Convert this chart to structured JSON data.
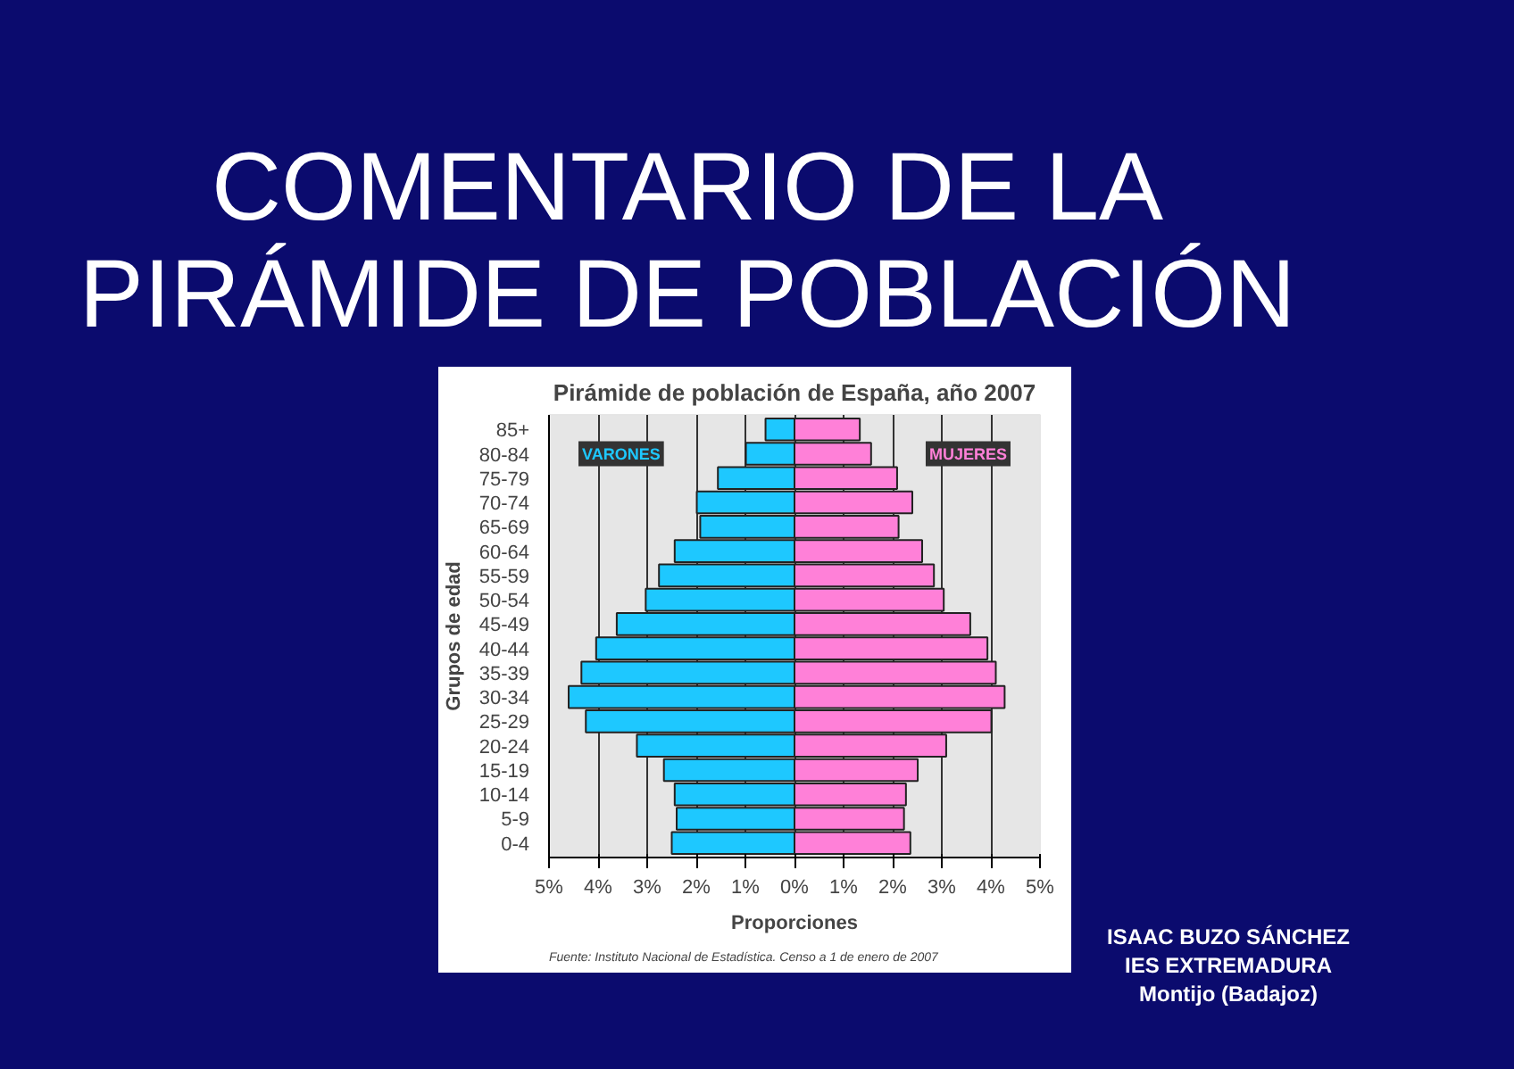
{
  "chart_data": {
    "type": "bar",
    "orientation": "horizontal",
    "stacked": true,
    "title": "COMENTARIO DE LA PIRÁMIDE DE POBLACIÓN",
    "subtitle": "Pirámide de población de España, año 2007",
    "xlabel": "Proporciones",
    "ylabel": "Grupos de edad",
    "categories": [
      "85+",
      "80-84",
      "75-79",
      "70-74",
      "65-69",
      "60-64",
      "55-59",
      "50-54",
      "45-49",
      "40-44",
      "35-39",
      "30-34",
      "25-29",
      "20-24",
      "15-19",
      "10-14",
      "5-9",
      "0-4"
    ],
    "series": [
      {
        "name": "VARONES",
        "color": "#1ec8ff",
        "values": [
          -0.59,
          -0.99,
          -1.56,
          -1.99,
          -1.92,
          -2.44,
          -2.76,
          -3.03,
          -3.62,
          -4.04,
          -4.34,
          -4.6,
          -4.25,
          -3.21,
          -2.66,
          -2.44,
          -2.4,
          -2.5
        ]
      },
      {
        "name": "MUJERES",
        "color": "#ff80d8",
        "values": [
          1.33,
          1.56,
          2.09,
          2.4,
          2.12,
          2.6,
          2.84,
          3.04,
          3.58,
          3.93,
          4.1,
          4.28,
          4.01,
          3.09,
          2.51,
          2.27,
          2.23,
          2.36
        ]
      }
    ],
    "xlim": [
      -5,
      5
    ],
    "xticks": [
      {
        "value": -5,
        "label": "5%"
      },
      {
        "value": -4,
        "label": "4%"
      },
      {
        "value": -3,
        "label": "3%"
      },
      {
        "value": -2,
        "label": "2%"
      },
      {
        "value": -1,
        "label": "1%"
      },
      {
        "value": 0,
        "label": "0%"
      },
      {
        "value": 1,
        "label": "1%"
      },
      {
        "value": 2,
        "label": "2%"
      },
      {
        "value": 3,
        "label": "3%"
      },
      {
        "value": 4,
        "label": "4%"
      },
      {
        "value": 5,
        "label": "5%"
      }
    ],
    "grid": "x",
    "legend": false,
    "annotations": [
      "Fuente: Instituto Nacional de Estadística. Censo a 1 de enero de 2007",
      "ISAAC BUZO SÁNCHEZ",
      "IES EXTREMADURA",
      "Montijo (Badajoz)"
    ]
  }
}
